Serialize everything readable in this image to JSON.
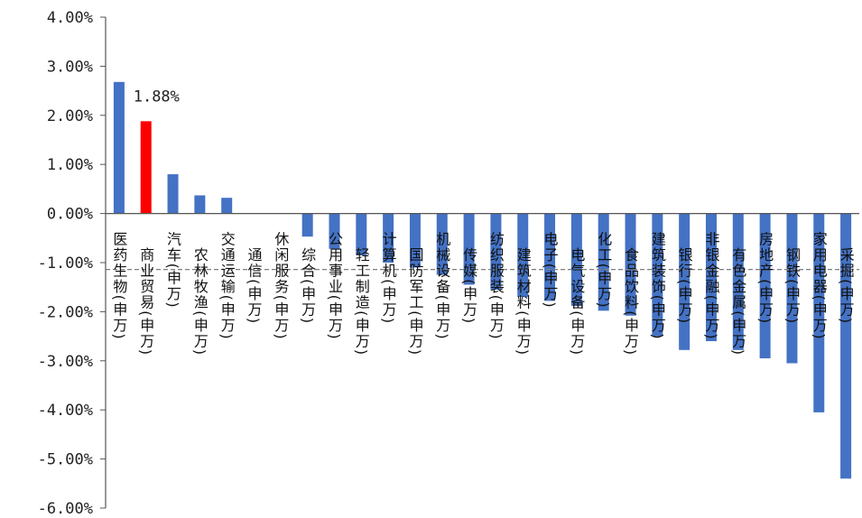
{
  "chart_data": {
    "type": "bar",
    "title": "",
    "xlabel": "",
    "ylabel": "",
    "ylim": [
      -6,
      4
    ],
    "yticks": [
      {
        "v": 4,
        "label": "4.00%"
      },
      {
        "v": 3,
        "label": "3.00%"
      },
      {
        "v": 2,
        "label": "2.00%"
      },
      {
        "v": 1,
        "label": "1.00%"
      },
      {
        "v": 0,
        "label": "0.00%"
      },
      {
        "v": -1,
        "label": "-1.00%"
      },
      {
        "v": -2,
        "label": "-2.00%"
      },
      {
        "v": -3,
        "label": "-3.00%"
      },
      {
        "v": -4,
        "label": "-4.00%"
      },
      {
        "v": -5,
        "label": "-5.00%"
      },
      {
        "v": -6,
        "label": "-6.00%"
      }
    ],
    "categories": [
      "医药生物(申万)",
      "商业贸易(申万)",
      "汽车(申万)",
      "农林牧渔(申万)",
      "交通运输(申万)",
      "通信(申万)",
      "休闲服务(申万)",
      "综合(申万)",
      "公用事业(申万)",
      "轻工制造(申万)",
      "计算机(申万)",
      "国防军工(申万)",
      "机械设备(申万)",
      "传媒(申万)",
      "纺织服装(申万)",
      "建筑材料(申万)",
      "电子(申万)",
      "电气设备(申万)",
      "化工(申万)",
      "食品饮料(申万)",
      "建筑装饰(申万)",
      "银行(申万)",
      "非银金融(申万)",
      "有色金属(申万)",
      "房地产(申万)",
      "钢铁(申万)",
      "家用电器(申万)",
      "采掘(申万)"
    ],
    "values": [
      2.68,
      1.88,
      0.8,
      0.37,
      0.32,
      0.0,
      0.0,
      -0.47,
      -0.72,
      -0.85,
      -1.0,
      -1.1,
      -1.25,
      -1.45,
      -1.55,
      -1.7,
      -1.78,
      -1.88,
      -1.98,
      -2.08,
      -2.5,
      -2.78,
      -2.6,
      -2.78,
      -2.95,
      -3.05,
      -4.05,
      -5.4
    ],
    "highlight_index": 1,
    "data_labels": [
      {
        "index": 1,
        "text": "1.88%"
      }
    ],
    "reference_line": -1.14,
    "colors": {
      "bar": "#4472C4",
      "highlight": "#FF0000",
      "axis": "#555555",
      "reference": "#7F7F7F"
    }
  }
}
